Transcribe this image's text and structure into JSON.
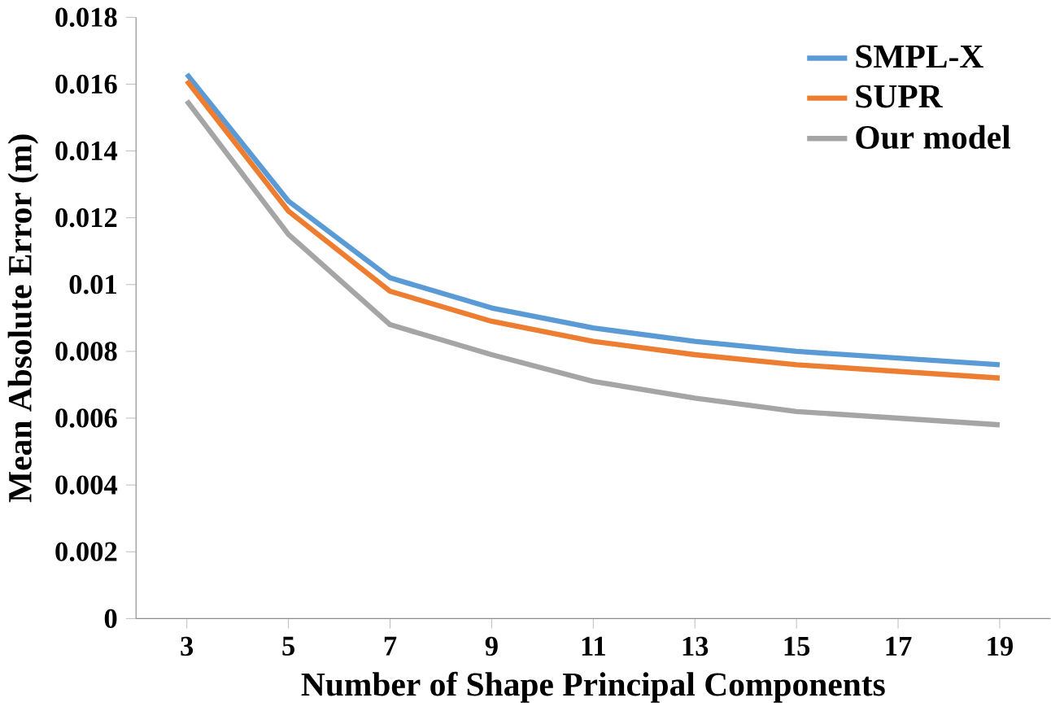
{
  "chart_data": {
    "type": "line",
    "xlabel": "Number of Shape Principal Components",
    "ylabel": "Mean Absolute Error (m)",
    "categories": [
      "3",
      "5",
      "7",
      "9",
      "11",
      "13",
      "15",
      "17",
      "19"
    ],
    "series": [
      {
        "name": "SMPL-X",
        "color": "#5b9bd5",
        "values": [
          0.0163,
          0.0125,
          0.0102,
          0.0093,
          0.0087,
          0.0083,
          0.008,
          0.0078,
          0.0076
        ]
      },
      {
        "name": "SUPR",
        "color": "#ed7d31",
        "values": [
          0.0161,
          0.0122,
          0.0098,
          0.0089,
          0.0083,
          0.0079,
          0.0076,
          0.0074,
          0.0072
        ]
      },
      {
        "name": "Our model",
        "color": "#a5a5a5",
        "values": [
          0.0155,
          0.0115,
          0.0088,
          0.0079,
          0.0071,
          0.0066,
          0.0062,
          0.006,
          0.0058
        ]
      }
    ],
    "ylim": [
      0,
      0.018
    ],
    "yticks": [
      0,
      0.002,
      0.004,
      0.006,
      0.008,
      0.01,
      0.012,
      0.014,
      0.016,
      0.018
    ],
    "grid": false,
    "legend": "top right",
    "marker": "none",
    "line_style": "solid"
  }
}
